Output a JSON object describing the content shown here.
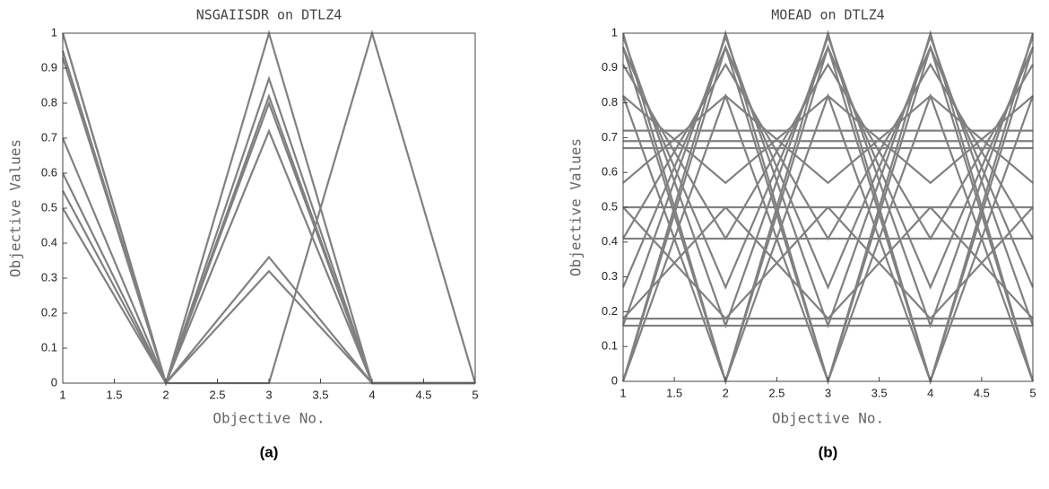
{
  "chart_data": [
    {
      "type": "line",
      "title": "NSGAIISDR on DTLZ4",
      "xlabel": "Objective No.",
      "ylabel": "Objective Values",
      "caption": "(a)",
      "color": "#808080",
      "x": [
        1,
        2,
        3,
        4,
        5
      ],
      "xlim": [
        1,
        5
      ],
      "xticks": [
        1,
        1.5,
        2,
        2.5,
        3,
        3.5,
        4,
        4.5,
        5
      ],
      "ylim": [
        0,
        1
      ],
      "yticks": [
        0,
        0.1,
        0.2,
        0.3,
        0.4,
        0.5,
        0.6,
        0.7,
        0.8,
        0.9,
        1
      ],
      "series": [
        {
          "values": [
            1.0,
            0,
            0,
            1,
            0
          ]
        },
        {
          "values": [
            0.95,
            0,
            1.0,
            0,
            0
          ]
        },
        {
          "values": [
            0.93,
            0,
            0.87,
            0,
            0
          ]
        },
        {
          "values": [
            0.7,
            0,
            0.82,
            0,
            0
          ]
        },
        {
          "values": [
            0.6,
            0,
            0.8,
            0,
            0
          ]
        },
        {
          "values": [
            0.55,
            0,
            0.72,
            0,
            0
          ]
        },
        {
          "values": [
            0.5,
            0,
            0.36,
            0,
            0
          ]
        },
        {
          "values": [
            1.0,
            0,
            0.32,
            0,
            0
          ]
        }
      ]
    },
    {
      "type": "line",
      "title": "MOEAD on DTLZ4",
      "xlabel": "Objective No.",
      "ylabel": "Objective Values",
      "caption": "(b)",
      "color": "#808080",
      "x": [
        1,
        2,
        3,
        4,
        5
      ],
      "xlim": [
        1,
        5
      ],
      "xticks": [
        1,
        1.5,
        2,
        2.5,
        3,
        3.5,
        4,
        4.5,
        5
      ],
      "ylim": [
        0,
        1
      ],
      "yticks": [
        0,
        0.1,
        0.2,
        0.3,
        0.4,
        0.5,
        0.6,
        0.7,
        0.8,
        0.9,
        1
      ],
      "series": [
        {
          "values": [
            0.72,
            0.72,
            0.72,
            0.72,
            0.72
          ]
        },
        {
          "values": [
            0.69,
            0.69,
            0.69,
            0.69,
            0.69
          ]
        },
        {
          "values": [
            0.67,
            0.67,
            0.67,
            0.67,
            0.67
          ]
        },
        {
          "values": [
            0.5,
            0.5,
            0.5,
            0.5,
            0.5
          ]
        },
        {
          "values": [
            0.41,
            0.41,
            0.41,
            0.41,
            0.41
          ]
        },
        {
          "values": [
            0.18,
            0.18,
            0.18,
            0.18,
            0.18
          ]
        },
        {
          "values": [
            0.16,
            0.16,
            0.16,
            0.16,
            0.16
          ]
        },
        {
          "values": [
            0,
            1,
            0,
            1,
            0
          ]
        },
        {
          "values": [
            1,
            0,
            1,
            0,
            1
          ]
        },
        {
          "values": [
            0.96,
            0.27,
            0.96,
            0.27,
            0.96
          ]
        },
        {
          "values": [
            0.27,
            0.96,
            0.27,
            0.96,
            0.27
          ]
        },
        {
          "values": [
            0.82,
            0.57,
            0.82,
            0.57,
            0.82
          ]
        },
        {
          "values": [
            0.57,
            0.82,
            0.57,
            0.82,
            0.57
          ]
        },
        {
          "values": [
            0,
            0.82,
            0,
            0.82,
            0
          ]
        },
        {
          "values": [
            0.82,
            0,
            0.82,
            0,
            0.82
          ]
        },
        {
          "values": [
            0,
            0.96,
            0,
            0.96,
            0
          ]
        },
        {
          "values": [
            0.96,
            0,
            0.96,
            0,
            0.96
          ]
        },
        {
          "values": [
            0.41,
            0.91,
            0.41,
            0.91,
            0.41
          ]
        },
        {
          "values": [
            0.91,
            0.41,
            0.91,
            0.41,
            0.91
          ]
        },
        {
          "values": [
            0.16,
            0.99,
            0.16,
            0.99,
            0.16
          ]
        },
        {
          "values": [
            0.99,
            0.16,
            0.99,
            0.16,
            0.99
          ]
        },
        {
          "values": [
            0.5,
            0.18,
            0.5,
            0.18,
            0.5
          ]
        },
        {
          "values": [
            0.18,
            0.5,
            0.18,
            0.5,
            0.18
          ]
        }
      ]
    }
  ]
}
